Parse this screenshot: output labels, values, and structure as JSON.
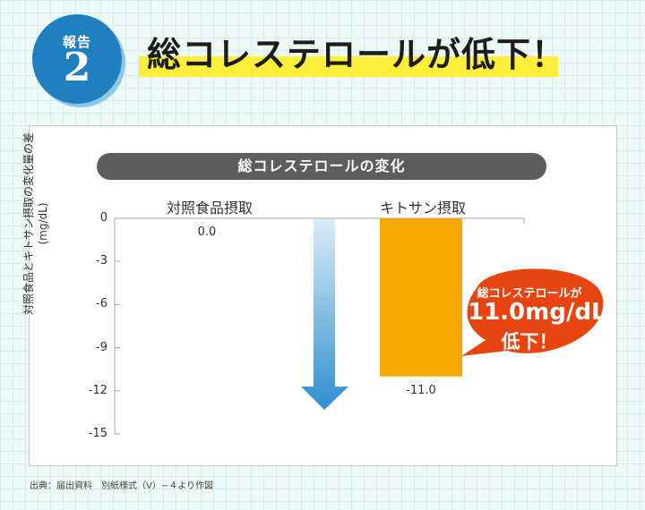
{
  "report_badge": {
    "label": "報告",
    "number": "2"
  },
  "headline": "総コレステロールが低下！",
  "chart_data": {
    "type": "bar",
    "title": "総コレステロールの変化",
    "categories": [
      "対照食品摂取",
      "キトサン摂取"
    ],
    "values": [
      0.0,
      -11.0
    ],
    "data_labels": [
      "0.0",
      "-11.0"
    ],
    "ylabel": "対照食品とキトサン摂取の変化量の差",
    "ylabel_unit": "(mg/dL)",
    "ylim": [
      -15,
      0
    ],
    "yticks": [
      0,
      -3,
      -6,
      -9,
      -12,
      -15
    ],
    "grid": false,
    "colors": {
      "bar": "#f6a800",
      "arrow_top": "#dcecf7",
      "arrow_bottom": "#2e8fcf"
    },
    "callout": {
      "line1": "総コレステロールが",
      "line2": "11.0mg/dL",
      "line3": "低下！",
      "color": "#e8440f"
    }
  },
  "source_note": "出典：届出資料　別紙様式（V）−４より作図"
}
